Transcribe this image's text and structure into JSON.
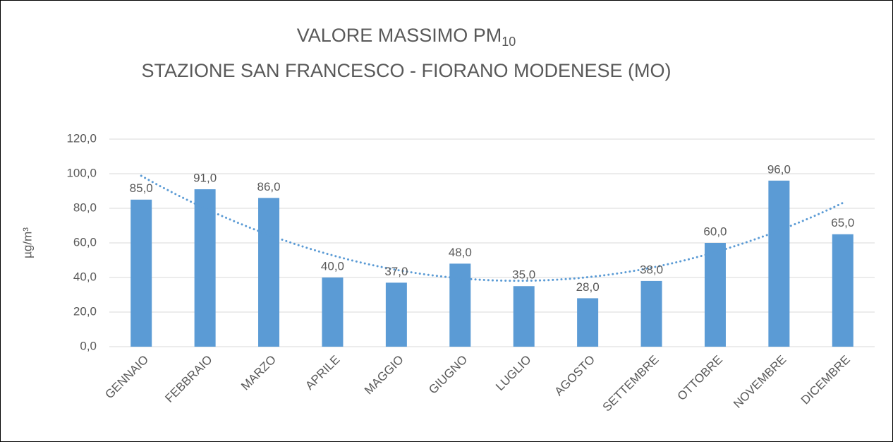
{
  "chart_data": {
    "type": "bar",
    "title": {
      "text": "VALORE MASSIMO PM",
      "subscript": "10"
    },
    "subtitle": "STAZIONE SAN FRANCESCO - FIORANO MODENESE (MO)",
    "y_label": "µg/m³",
    "categories": [
      "GENNAIO",
      "FEBBRAIO",
      "MARZO",
      "APRILE",
      "MAGGIO",
      "GIUGNO",
      "LUGLIO",
      "AGOSTO",
      "SETTEMBRE",
      "OTTOBRE",
      "NOVEMBRE",
      "DICEMBRE"
    ],
    "values": [
      85,
      91,
      86,
      40,
      37,
      48,
      35,
      28,
      38,
      60,
      96,
      65
    ],
    "value_labels": [
      "85,0",
      "91,0",
      "86,0",
      "40,0",
      "37,0",
      "48,0",
      "35,0",
      "28,0",
      "38,0",
      "60,0",
      "96,0",
      "65,0"
    ],
    "color": "#5b9bd5",
    "ylim": [
      0,
      120
    ],
    "yticks": [
      {
        "value": 0,
        "label": "0,0"
      },
      {
        "value": 20,
        "label": "20,0"
      },
      {
        "value": 40,
        "label": "40,0"
      },
      {
        "value": 60,
        "label": "60,0"
      },
      {
        "value": 80,
        "label": "80,0"
      },
      {
        "value": 100,
        "label": "100,0"
      },
      {
        "value": 120,
        "label": "120,0"
      }
    ],
    "grid": true,
    "trendline": {
      "type": "polynomial",
      "order": 2,
      "color": "#5b9bd5"
    }
  }
}
